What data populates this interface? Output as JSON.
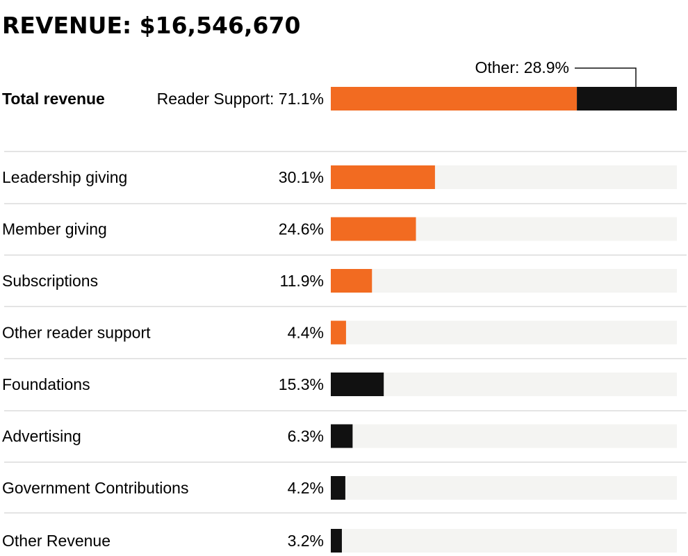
{
  "chart_data": {
    "type": "bar",
    "title": "REVENUE: $16,546,670",
    "total": {
      "label": "Total revenue",
      "segments": [
        {
          "name": "Reader Support",
          "label": "Reader Support: 71.1%",
          "value": 71.1,
          "color": "#f26b21"
        },
        {
          "name": "Other",
          "label": "Other: 28.9%",
          "value": 28.9,
          "color": "#111111"
        }
      ]
    },
    "categories": [
      "Leadership giving",
      "Member giving",
      "Subscriptions",
      "Other reader support",
      "Foundations",
      "Advertising",
      "Government Contributions",
      "Other Revenue"
    ],
    "values": [
      30.1,
      24.6,
      11.9,
      4.4,
      15.3,
      6.3,
      4.2,
      3.2
    ],
    "value_labels": [
      "30.1%",
      "24.6%",
      "11.9%",
      "4.4%",
      "15.3%",
      "6.3%",
      "4.2%",
      "3.2%"
    ],
    "groups": [
      "reader",
      "reader",
      "reader",
      "reader",
      "other",
      "other",
      "other",
      "other"
    ],
    "xlim": [
      0,
      100
    ],
    "colors": {
      "reader": "#f26b21",
      "other": "#111111",
      "track": "#f4f4f2",
      "divider": "#c8c8c8"
    }
  }
}
